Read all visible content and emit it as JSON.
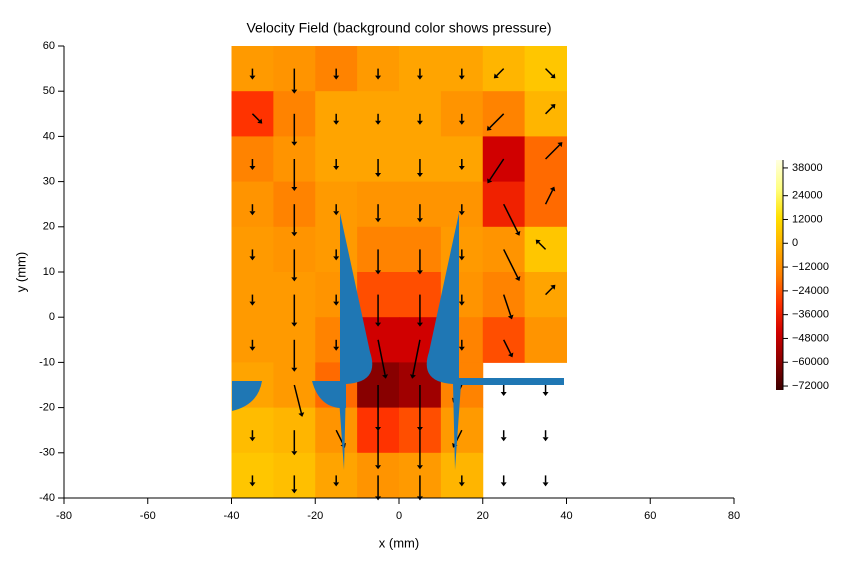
{
  "chart_data": {
    "type": "velocity-field",
    "title": "Velocity Field (background color shows pressure)",
    "x_label": "x (mm)",
    "y_label": "y (mm)",
    "xlim": [
      -80,
      80
    ],
    "ylim": [
      -40,
      60
    ],
    "xticks": [
      {
        "value": -80,
        "label": "-80"
      },
      {
        "value": -60,
        "label": "-60"
      },
      {
        "value": -40,
        "label": "-40"
      },
      {
        "value": -20,
        "label": "-20"
      },
      0,
      20,
      40,
      60,
      80
    ],
    "yticks": [
      {
        "value": -40,
        "label": "-40"
      },
      {
        "value": -30,
        "label": "-30"
      },
      {
        "value": -20,
        "label": "-20"
      },
      {
        "value": -10,
        "label": "-10"
      },
      0,
      10,
      20,
      30,
      40,
      50,
      60
    ],
    "grid_x": [
      -40,
      -30,
      -20,
      -10,
      0,
      10,
      20,
      30,
      40
    ],
    "grid_y": [
      60,
      50,
      40,
      30,
      20,
      10,
      0,
      -10,
      -20,
      -30,
      -40
    ],
    "pressure": {
      "values": [
        [
          -8000,
          -10000,
          -15000,
          -8000,
          -5000,
          -5000,
          0,
          5000
        ],
        [
          -30000,
          -15000,
          -5000,
          -5000,
          -5000,
          -10000,
          -15000,
          0
        ],
        [
          -15000,
          -10000,
          -5000,
          -5000,
          -5000,
          -5000,
          -45000,
          -20000
        ],
        [
          -10000,
          -15000,
          -8000,
          -10000,
          -10000,
          -10000,
          -35000,
          -20000
        ],
        [
          -8000,
          -10000,
          -8000,
          -15000,
          -15000,
          -8000,
          -10000,
          5000
        ],
        [
          -8000,
          -8000,
          -10000,
          -25000,
          -25000,
          -10000,
          -15000,
          -5000
        ],
        [
          -8000,
          -8000,
          -15000,
          -45000,
          -45000,
          -15000,
          -25000,
          -10000
        ],
        [
          -5000,
          -8000,
          -20000,
          -60000,
          -55000,
          -15000,
          null,
          null
        ],
        [
          2000,
          0,
          -10000,
          -30000,
          -25000,
          -8000,
          null,
          null
        ],
        [
          5000,
          3000,
          -5000,
          -10000,
          -8000,
          0,
          null,
          null
        ]
      ]
    },
    "velocity": {
      "u": [
        [
          0,
          0,
          0,
          0,
          0,
          0,
          -1,
          1
        ],
        [
          1,
          0,
          0,
          0,
          0,
          0,
          -2,
          1
        ],
        [
          0,
          0,
          0,
          0,
          0,
          0,
          -2,
          2
        ],
        [
          0,
          0,
          0,
          0,
          0,
          0,
          2,
          1
        ],
        [
          0,
          0,
          0,
          0,
          0,
          0,
          2,
          -1
        ],
        [
          0,
          0,
          0,
          0,
          0,
          0,
          1,
          1
        ],
        [
          0,
          0,
          0,
          1,
          -1,
          0,
          1,
          0
        ],
        [
          0,
          1,
          1,
          0,
          0,
          -1,
          0,
          0
        ],
        [
          0,
          0,
          1,
          0,
          0,
          -1,
          0,
          0
        ],
        [
          0,
          0,
          0,
          0,
          0,
          0,
          0,
          0
        ]
      ],
      "v": [
        [
          -1,
          -3,
          -1,
          -1,
          -1,
          -1,
          -1,
          -1
        ],
        [
          -1,
          -4,
          -1,
          -1,
          -1,
          -1,
          -2,
          1
        ],
        [
          -1,
          -4,
          -1,
          -2,
          -2,
          -1,
          -3,
          2
        ],
        [
          -1,
          -4,
          -1,
          -2,
          -2,
          -1,
          -4,
          2
        ],
        [
          -1,
          -4,
          -1,
          -3,
          -3,
          -1,
          -4,
          1
        ],
        [
          -1,
          -4,
          -1,
          -4,
          -4,
          -1,
          -3,
          1
        ],
        [
          -1,
          -4,
          -1,
          -5,
          -5,
          -1,
          -2,
          0
        ],
        [
          -1,
          -4,
          -2,
          -6,
          -6,
          -2,
          -1,
          -1
        ],
        [
          -1,
          -3,
          -2,
          -5,
          -5,
          -2,
          -1,
          -1
        ],
        [
          -1,
          -2,
          -1,
          -3,
          -3,
          -1,
          -1,
          -1
        ]
      ],
      "color": "#000000"
    },
    "zlim": [
      -74000,
      42000
    ],
    "colorscale": [
      "#3b0000",
      "#8b0000",
      "#d00000",
      "#ff3000",
      "#ff8000",
      "#ffb000",
      "#ffe000",
      "#ffff80",
      "#ffffe0"
    ],
    "colorbar_ticks": [
      38000,
      24000,
      12000,
      0,
      {
        "value": -12000,
        "label": "−12000"
      },
      {
        "value": -24000,
        "label": "−24000"
      },
      {
        "value": -36000,
        "label": "−36000"
      },
      {
        "value": -48000,
        "label": "−48000"
      },
      {
        "value": -60000,
        "label": "−60000"
      },
      {
        "value": -72000,
        "label": "−72000"
      }
    ],
    "obstacle_color": "#1f77b4"
  }
}
